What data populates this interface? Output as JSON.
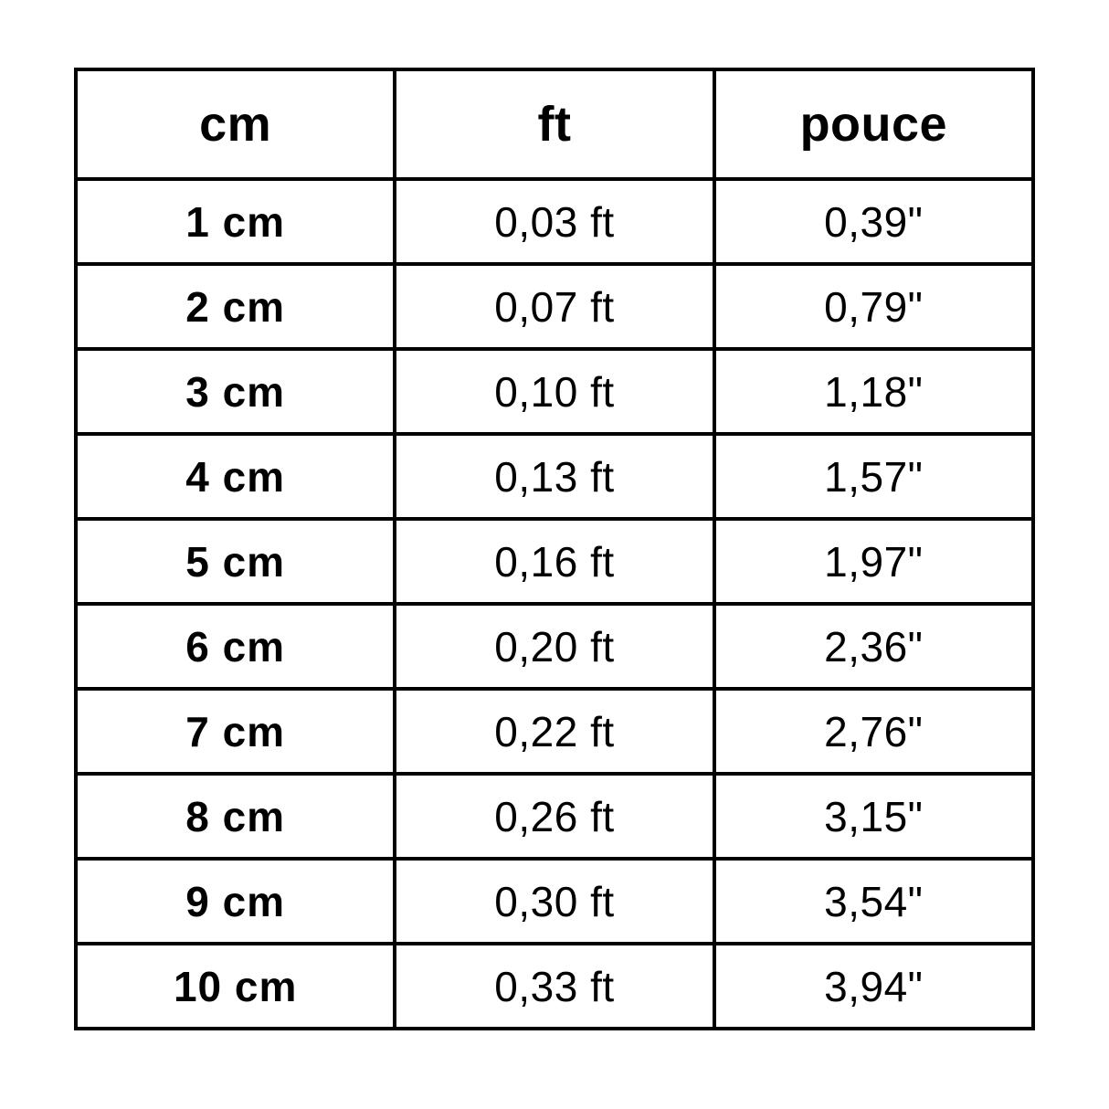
{
  "chart_data": {
    "type": "table",
    "title": "",
    "columns": [
      "cm",
      "ft",
      "pouce"
    ],
    "rows": [
      [
        "1 cm",
        "0,03 ft",
        "0,39\""
      ],
      [
        "2 cm",
        "0,07 ft",
        "0,79\""
      ],
      [
        "3 cm",
        "0,10 ft",
        "1,18\""
      ],
      [
        "4 cm",
        "0,13 ft",
        "1,57\""
      ],
      [
        "5 cm",
        "0,16 ft",
        "1,97\""
      ],
      [
        "6 cm",
        "0,20 ft",
        "2,36\""
      ],
      [
        "7 cm",
        "0,22 ft",
        "2,76\""
      ],
      [
        "8 cm",
        "0,26 ft",
        "3,15\""
      ],
      [
        "9 cm",
        "0,30 ft",
        "3,54\""
      ],
      [
        "10 cm",
        "0,33 ft",
        "3,94\""
      ]
    ],
    "numeric_values": {
      "cm": [
        1,
        2,
        3,
        4,
        5,
        6,
        7,
        8,
        9,
        10
      ],
      "ft": [
        0.03,
        0.07,
        0.1,
        0.13,
        0.16,
        0.2,
        0.22,
        0.26,
        0.3,
        0.33
      ],
      "pouce": [
        0.39,
        0.79,
        1.18,
        1.57,
        1.97,
        2.36,
        2.76,
        3.15,
        3.54,
        3.94
      ]
    },
    "layout": {
      "grid": true,
      "border_color": "#000000",
      "background_color": "#ffffff",
      "text_color": "#000000"
    }
  }
}
